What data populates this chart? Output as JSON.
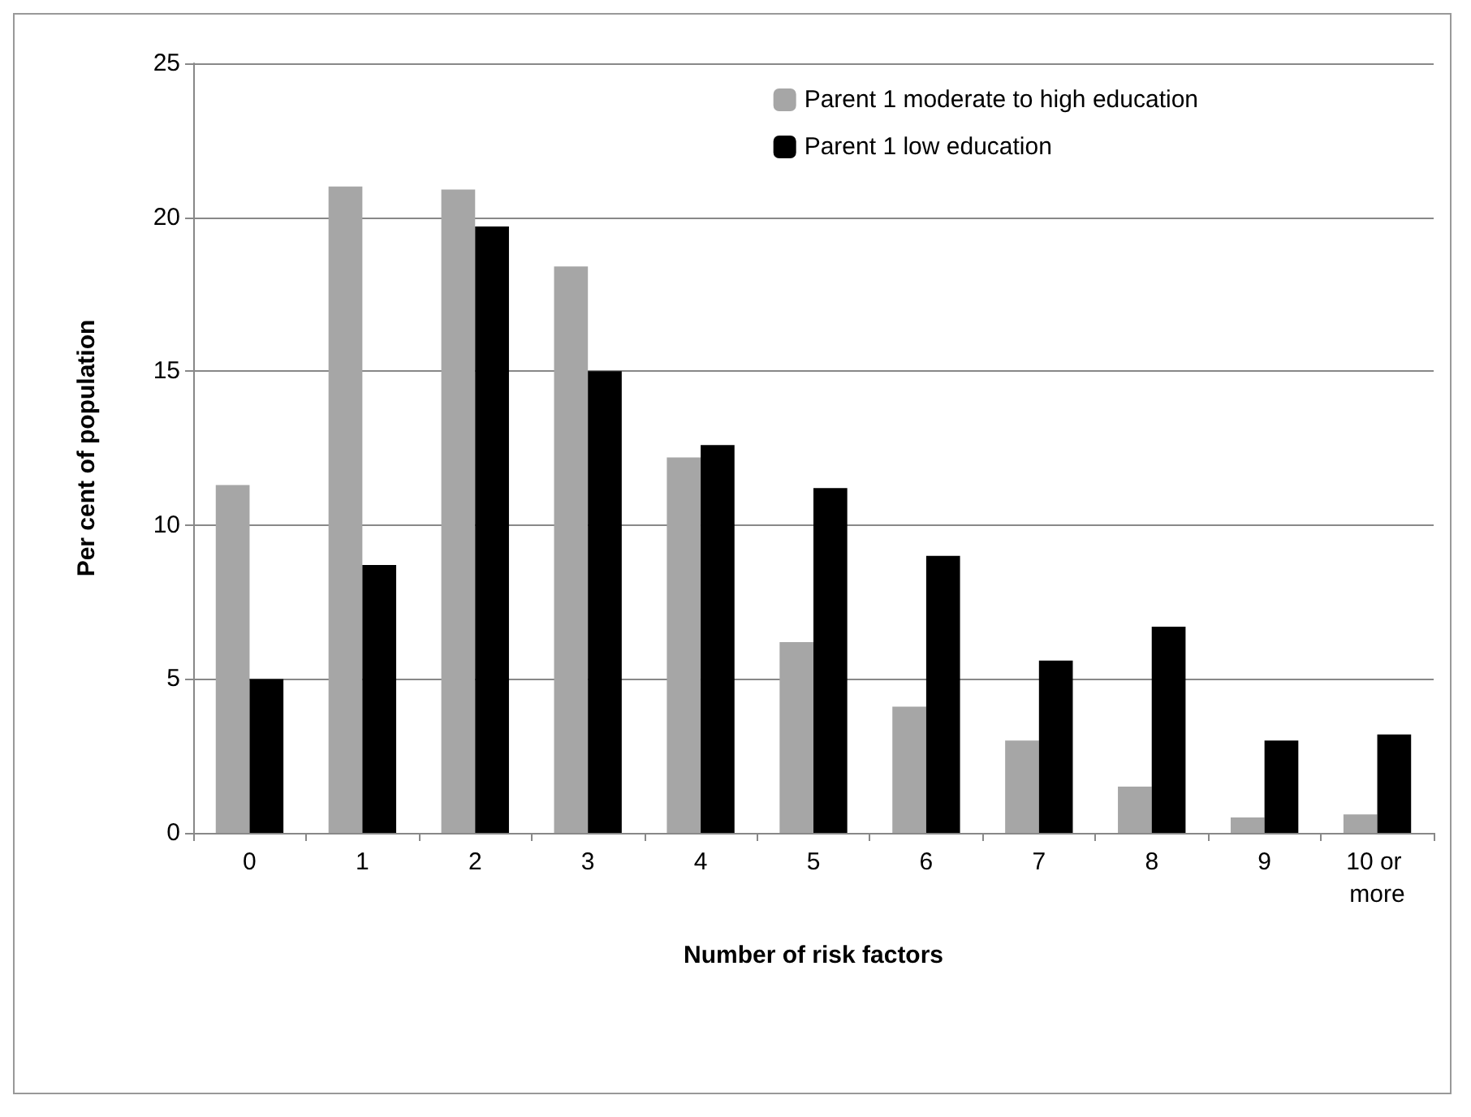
{
  "chart_data": {
    "type": "bar",
    "xlabel": "Number of risk factors",
    "ylabel": "Per cent of population",
    "categories": [
      "0",
      "1",
      "2",
      "3",
      "4",
      "5",
      "6",
      "7",
      "8",
      "9",
      "10 or more"
    ],
    "series": [
      {
        "name": "Parent 1 moderate to high education",
        "color": "#a6a6a6",
        "values": [
          11.3,
          21.0,
          20.9,
          18.4,
          12.2,
          6.2,
          4.1,
          3.0,
          1.5,
          0.5,
          0.6
        ]
      },
      {
        "name": "Parent 1 low education",
        "color": "#000000",
        "values": [
          5.0,
          8.7,
          19.7,
          15.0,
          12.6,
          11.2,
          9.0,
          5.6,
          6.7,
          3.0,
          3.2
        ]
      }
    ],
    "ylim": [
      0,
      25
    ],
    "yticks": [
      0,
      5,
      10,
      15,
      20,
      25
    ],
    "grid": "y",
    "legend": "top right"
  }
}
